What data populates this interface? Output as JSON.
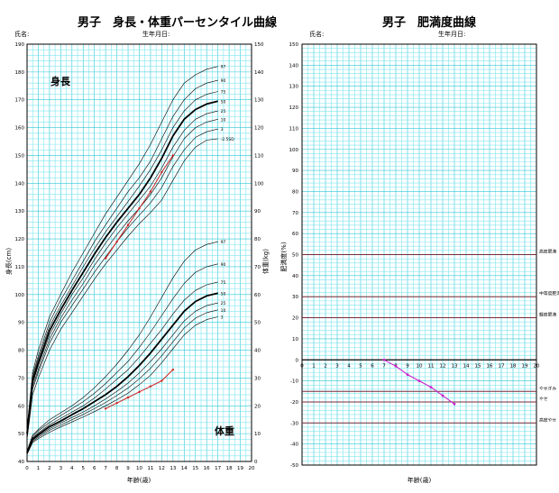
{
  "chart_data": [
    {
      "type": "line",
      "title": "男子　身長・体重パーセンタイル曲線",
      "name_label": "氏名:",
      "birth_label": "生年月日:",
      "xlabel": "年齢(歳)",
      "ylabel_left": "身長(cm)",
      "ylabel_right": "体重(kg)",
      "xlim": [
        0,
        20
      ],
      "ylim_left": [
        40,
        190
      ],
      "ylim_right": [
        0,
        150
      ],
      "grid": true,
      "x_ticks": [
        "0",
        "1",
        "2",
        "3",
        "4",
        "5",
        "6",
        "7",
        "8",
        "9",
        "10",
        "11",
        "12",
        "13",
        "14",
        "15",
        "16",
        "17",
        "18",
        "19",
        "20"
      ],
      "y_ticks_left": [
        "40",
        "50",
        "60",
        "70",
        "80",
        "90",
        "100",
        "110",
        "120",
        "130",
        "140",
        "150",
        "160",
        "170",
        "180",
        "190"
      ],
      "y_ticks_right": [
        "0",
        "10",
        "20",
        "30",
        "40",
        "50",
        "60",
        "70",
        "80",
        "90",
        "100",
        "110",
        "120",
        "130",
        "140",
        "150"
      ],
      "annotations": {
        "height": "身長",
        "weight": "体重"
      },
      "x": [
        0,
        0.5,
        1,
        2,
        3,
        4,
        5,
        6,
        7,
        8,
        9,
        10,
        11,
        12,
        13,
        14,
        15,
        16,
        17
      ],
      "height_series": [
        {
          "name": "97",
          "values": [
            52,
            72,
            80,
            92,
            100,
            108,
            115,
            122,
            129,
            135,
            141,
            147,
            154,
            162,
            170,
            176,
            179,
            181,
            182
          ]
        },
        {
          "name": "90",
          "values": [
            51,
            71,
            78,
            90,
            98,
            105,
            112,
            119,
            125,
            131,
            137,
            142,
            148,
            156,
            164,
            170,
            174,
            176,
            177
          ]
        },
        {
          "name": "75",
          "values": [
            50.5,
            70,
            77,
            88.5,
            96,
            103,
            110,
            116.5,
            122.5,
            128,
            133.5,
            139,
            145,
            152,
            160,
            166,
            170,
            172,
            173
          ]
        },
        {
          "name": "50",
          "values": [
            50,
            69,
            75.5,
            87,
            94.5,
            101.5,
            108,
            114.5,
            120.5,
            126,
            131,
            136,
            142,
            149,
            157,
            163,
            166.5,
            168.5,
            169.5
          ]
        },
        {
          "name": "25",
          "values": [
            49.5,
            68,
            74.5,
            85.5,
            93,
            100,
            106,
            112.5,
            118.5,
            124,
            129,
            134,
            139,
            145.5,
            153,
            159,
            163,
            165,
            166
          ]
        },
        {
          "name": "10",
          "values": [
            49,
            67,
            73,
            84,
            91.5,
            98,
            104,
            110.5,
            116,
            121.5,
            126.5,
            131,
            136,
            142,
            149.5,
            156,
            160,
            162,
            163
          ]
        },
        {
          "name": "3",
          "values": [
            48.5,
            66,
            72,
            82.5,
            90,
            96,
            102,
            108,
            113.5,
            119,
            124,
            128.5,
            133,
            138.5,
            146,
            152,
            156.5,
            158.5,
            159.5
          ]
        },
        {
          "name": "-2.5SD",
          "values": [
            48,
            64,
            70,
            80,
            87.5,
            93.5,
            99.5,
            105.5,
            111,
            116,
            121,
            125.5,
            129.5,
            134,
            141,
            148,
            153,
            155.5,
            156
          ]
        }
      ],
      "weight_series": [
        {
          "name": "97",
          "values": [
            3.8,
            9.5,
            11.5,
            15,
            17.5,
            20,
            23,
            26.5,
            30.5,
            35,
            40,
            45.5,
            52,
            59,
            66,
            72,
            76,
            78,
            79
          ]
        },
        {
          "name": "90",
          "values": [
            3.5,
            9,
            11,
            14,
            16.5,
            19,
            21.5,
            24.5,
            28,
            32,
            36,
            41,
            46.5,
            52.5,
            58.5,
            64,
            68,
            70,
            71
          ]
        },
        {
          "name": "75",
          "values": [
            3.3,
            8.5,
            10.3,
            13.2,
            15.5,
            17.8,
            20,
            22.8,
            26,
            29.5,
            33,
            37.5,
            42.5,
            47.5,
            53,
            58,
            61.5,
            63.5,
            64.5
          ]
        },
        {
          "name": "50",
          "values": [
            3.1,
            8,
            9.7,
            12.5,
            14.5,
            16.8,
            19,
            21.5,
            24,
            27,
            30.5,
            34.5,
            39,
            44,
            49,
            54,
            57.5,
            59.5,
            60.5
          ]
        },
        {
          "name": "25",
          "values": [
            2.9,
            7.6,
            9.2,
            11.8,
            13.8,
            15.8,
            17.8,
            20,
            22.5,
            25.2,
            28.2,
            31.8,
            36,
            40.5,
            45.5,
            50.5,
            54,
            56,
            57
          ]
        },
        {
          "name": "10",
          "values": [
            2.7,
            7.2,
            8.7,
            11.2,
            13.1,
            15,
            16.9,
            19,
            21.2,
            23.7,
            26.4,
            29.7,
            33.5,
            38,
            43,
            48,
            51.5,
            53.5,
            54.5
          ]
        },
        {
          "name": "3",
          "values": [
            2.5,
            6.8,
            8.2,
            10.5,
            12.4,
            14.2,
            16,
            17.9,
            20,
            22.2,
            24.6,
            27.6,
            31,
            35.5,
            40.5,
            45.5,
            49,
            51,
            52
          ]
        }
      ],
      "patient_height": {
        "x": [
          7,
          8,
          9,
          10,
          11,
          12,
          13
        ],
        "values": [
          113,
          119,
          125,
          131,
          137,
          144,
          150
        ]
      },
      "patient_weight": {
        "x": [
          7,
          8,
          9,
          10,
          11,
          12,
          13
        ],
        "values": [
          19,
          21,
          23,
          25,
          27,
          29,
          33
        ]
      },
      "colors": {
        "grid_minor": "#7fe6ef",
        "grid_major": "#2fc9d8",
        "frame": "#000000",
        "percentile": "#000000",
        "patient": "#cc2222"
      }
    },
    {
      "type": "line",
      "title": "男子　肥満度曲線",
      "name_label": "氏名:",
      "birth_label": "生年月日:",
      "xlabel": "年齢(歳)",
      "ylabel": "肥満度(%)",
      "xlim": [
        0,
        20
      ],
      "ylim": [
        -50,
        150
      ],
      "grid": true,
      "x_ticks": [
        "0",
        "1",
        "2",
        "3",
        "4",
        "5",
        "6",
        "7",
        "8",
        "9",
        "10",
        "11",
        "12",
        "13",
        "14",
        "15",
        "16",
        "17",
        "18",
        "19",
        "20"
      ],
      "y_ticks": [
        "-50",
        "-40",
        "-30",
        "-20",
        "-10",
        "0",
        "10",
        "20",
        "30",
        "40",
        "50",
        "60",
        "70",
        "80",
        "90",
        "100",
        "110",
        "120",
        "130",
        "140",
        "150"
      ],
      "reference_lines": [
        {
          "value": 50,
          "label": "高度肥満"
        },
        {
          "value": 30,
          "label": "中等度肥満"
        },
        {
          "value": 20,
          "label": "軽度肥満"
        },
        {
          "value": -15,
          "label": "やせぎみ"
        },
        {
          "value": -20,
          "label": "やせ"
        },
        {
          "value": -30,
          "label": "高度やせ"
        }
      ],
      "series": [
        {
          "x": [
            7,
            8,
            9,
            10,
            11,
            12,
            13
          ],
          "values": [
            0,
            -3,
            -7,
            -10,
            -13,
            -17,
            -21
          ]
        }
      ],
      "colors": {
        "grid_minor": "#7fe6ef",
        "grid_major": "#2fc9d8",
        "frame": "#000000",
        "reference": "#7a2a3a",
        "series": "#cc22cc"
      }
    }
  ]
}
